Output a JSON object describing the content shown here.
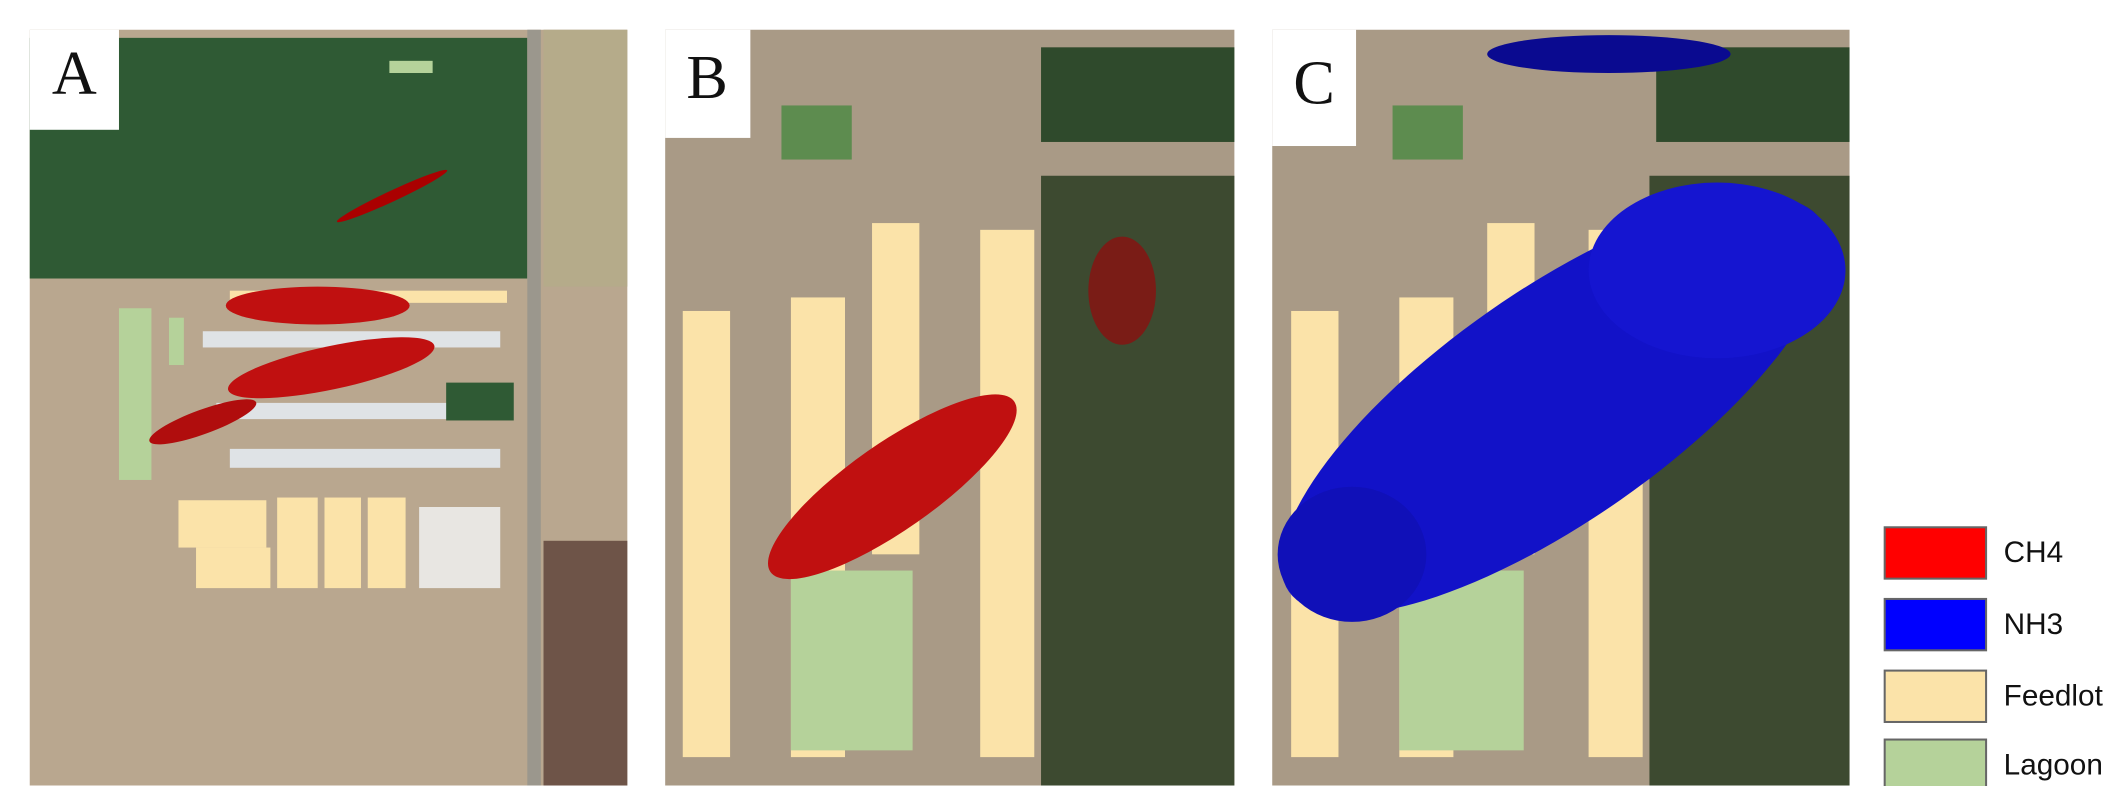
{
  "panels": [
    {
      "label": "A"
    },
    {
      "label": "B"
    },
    {
      "label": "C"
    }
  ],
  "legend": [
    {
      "label": "CH4",
      "color": "#ff0000"
    },
    {
      "label": "NH3",
      "color": "#0000ff"
    },
    {
      "label": "Feedlot",
      "color": "#fbe3a9"
    },
    {
      "label": "Lagoon",
      "color": "#b5d29a"
    }
  ]
}
